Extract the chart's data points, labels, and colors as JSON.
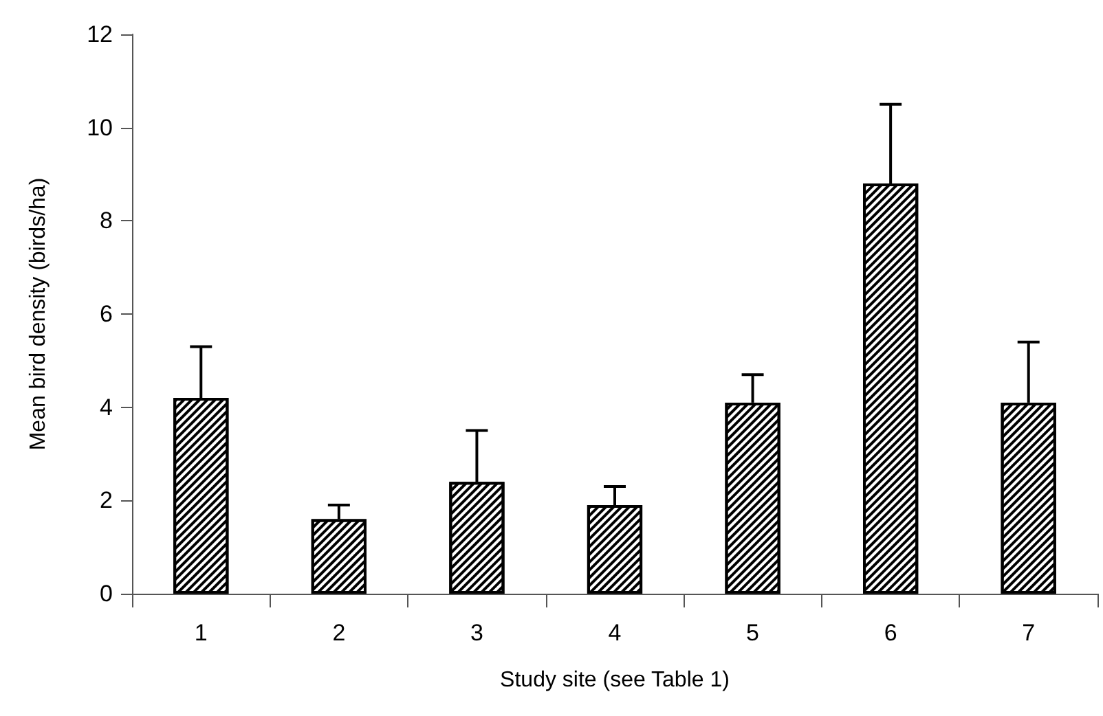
{
  "chart_data": {
    "type": "bar",
    "xlabel": "Study site (see Table 1)",
    "ylabel": "Mean bird density (birds/ha)",
    "categories": [
      "1",
      "2",
      "3",
      "4",
      "5",
      "6",
      "7"
    ],
    "values": [
      4.2,
      1.6,
      2.4,
      1.9,
      4.1,
      8.8,
      4.1
    ],
    "errors": [
      [
        4.2,
        5.3
      ],
      [
        1.6,
        1.9
      ],
      [
        2.4,
        3.5
      ],
      [
        1.9,
        2.3
      ],
      [
        4.1,
        4.7
      ],
      [
        8.8,
        10.5
      ],
      [
        4.1,
        5.4
      ]
    ],
    "color": "#000000",
    "ylim": [
      0,
      12
    ],
    "yticks": [
      0,
      2,
      4,
      6,
      8,
      10,
      12
    ],
    "grid": false
  }
}
